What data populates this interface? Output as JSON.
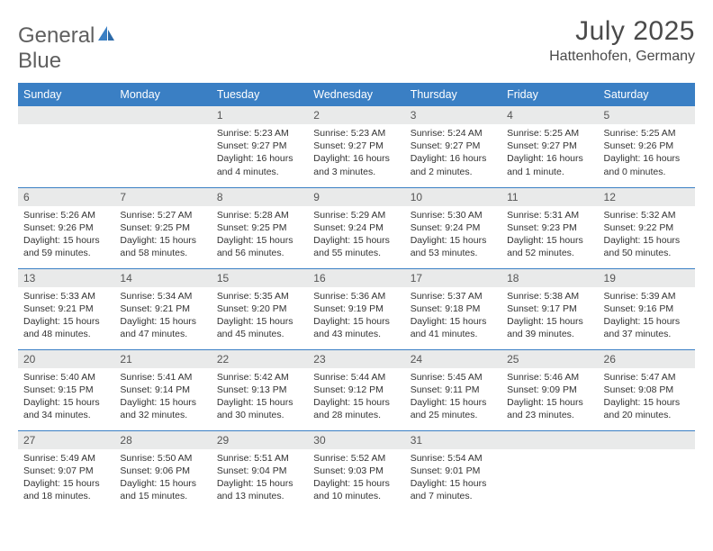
{
  "brand": {
    "word1": "General",
    "word2": "Blue"
  },
  "title": "July 2025",
  "location": "Hattenhofen, Germany",
  "colors": {
    "header_bg": "#3a7fc4",
    "header_text": "#ffffff",
    "daynum_bg": "#e9eaea",
    "border": "#3a7fc4",
    "page_bg": "#ffffff",
    "text": "#333333",
    "title_text": "#4a4a4a",
    "logo_gray": "#5f5f5f",
    "logo_blue": "#3a7fc4"
  },
  "weekdays": [
    "Sunday",
    "Monday",
    "Tuesday",
    "Wednesday",
    "Thursday",
    "Friday",
    "Saturday"
  ],
  "weeks": [
    [
      null,
      null,
      {
        "d": "1",
        "sr": "5:23 AM",
        "ss": "9:27 PM",
        "dl": "16 hours and 4 minutes."
      },
      {
        "d": "2",
        "sr": "5:23 AM",
        "ss": "9:27 PM",
        "dl": "16 hours and 3 minutes."
      },
      {
        "d": "3",
        "sr": "5:24 AM",
        "ss": "9:27 PM",
        "dl": "16 hours and 2 minutes."
      },
      {
        "d": "4",
        "sr": "5:25 AM",
        "ss": "9:27 PM",
        "dl": "16 hours and 1 minute."
      },
      {
        "d": "5",
        "sr": "5:25 AM",
        "ss": "9:26 PM",
        "dl": "16 hours and 0 minutes."
      }
    ],
    [
      {
        "d": "6",
        "sr": "5:26 AM",
        "ss": "9:26 PM",
        "dl": "15 hours and 59 minutes."
      },
      {
        "d": "7",
        "sr": "5:27 AM",
        "ss": "9:25 PM",
        "dl": "15 hours and 58 minutes."
      },
      {
        "d": "8",
        "sr": "5:28 AM",
        "ss": "9:25 PM",
        "dl": "15 hours and 56 minutes."
      },
      {
        "d": "9",
        "sr": "5:29 AM",
        "ss": "9:24 PM",
        "dl": "15 hours and 55 minutes."
      },
      {
        "d": "10",
        "sr": "5:30 AM",
        "ss": "9:24 PM",
        "dl": "15 hours and 53 minutes."
      },
      {
        "d": "11",
        "sr": "5:31 AM",
        "ss": "9:23 PM",
        "dl": "15 hours and 52 minutes."
      },
      {
        "d": "12",
        "sr": "5:32 AM",
        "ss": "9:22 PM",
        "dl": "15 hours and 50 minutes."
      }
    ],
    [
      {
        "d": "13",
        "sr": "5:33 AM",
        "ss": "9:21 PM",
        "dl": "15 hours and 48 minutes."
      },
      {
        "d": "14",
        "sr": "5:34 AM",
        "ss": "9:21 PM",
        "dl": "15 hours and 47 minutes."
      },
      {
        "d": "15",
        "sr": "5:35 AM",
        "ss": "9:20 PM",
        "dl": "15 hours and 45 minutes."
      },
      {
        "d": "16",
        "sr": "5:36 AM",
        "ss": "9:19 PM",
        "dl": "15 hours and 43 minutes."
      },
      {
        "d": "17",
        "sr": "5:37 AM",
        "ss": "9:18 PM",
        "dl": "15 hours and 41 minutes."
      },
      {
        "d": "18",
        "sr": "5:38 AM",
        "ss": "9:17 PM",
        "dl": "15 hours and 39 minutes."
      },
      {
        "d": "19",
        "sr": "5:39 AM",
        "ss": "9:16 PM",
        "dl": "15 hours and 37 minutes."
      }
    ],
    [
      {
        "d": "20",
        "sr": "5:40 AM",
        "ss": "9:15 PM",
        "dl": "15 hours and 34 minutes."
      },
      {
        "d": "21",
        "sr": "5:41 AM",
        "ss": "9:14 PM",
        "dl": "15 hours and 32 minutes."
      },
      {
        "d": "22",
        "sr": "5:42 AM",
        "ss": "9:13 PM",
        "dl": "15 hours and 30 minutes."
      },
      {
        "d": "23",
        "sr": "5:44 AM",
        "ss": "9:12 PM",
        "dl": "15 hours and 28 minutes."
      },
      {
        "d": "24",
        "sr": "5:45 AM",
        "ss": "9:11 PM",
        "dl": "15 hours and 25 minutes."
      },
      {
        "d": "25",
        "sr": "5:46 AM",
        "ss": "9:09 PM",
        "dl": "15 hours and 23 minutes."
      },
      {
        "d": "26",
        "sr": "5:47 AM",
        "ss": "9:08 PM",
        "dl": "15 hours and 20 minutes."
      }
    ],
    [
      {
        "d": "27",
        "sr": "5:49 AM",
        "ss": "9:07 PM",
        "dl": "15 hours and 18 minutes."
      },
      {
        "d": "28",
        "sr": "5:50 AM",
        "ss": "9:06 PM",
        "dl": "15 hours and 15 minutes."
      },
      {
        "d": "29",
        "sr": "5:51 AM",
        "ss": "9:04 PM",
        "dl": "15 hours and 13 minutes."
      },
      {
        "d": "30",
        "sr": "5:52 AM",
        "ss": "9:03 PM",
        "dl": "15 hours and 10 minutes."
      },
      {
        "d": "31",
        "sr": "5:54 AM",
        "ss": "9:01 PM",
        "dl": "15 hours and 7 minutes."
      },
      null,
      null
    ]
  ],
  "labels": {
    "sunrise": "Sunrise:",
    "sunset": "Sunset:",
    "daylight": "Daylight:"
  }
}
